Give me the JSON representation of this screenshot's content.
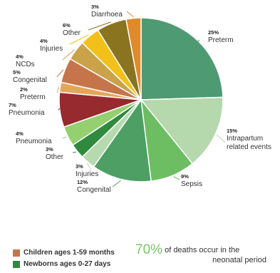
{
  "chart_data": {
    "type": "pie",
    "start": "clockwise from 12 o'clock",
    "slices": [
      {
        "label": "Preterm",
        "value": 25,
        "pct": "25%",
        "group": "Newborns ages 0-27 days",
        "color": "#4e9a72"
      },
      {
        "label": "Intrapartum related events",
        "value": 15,
        "pct": "15%",
        "group": "Newborns ages 0-27 days",
        "color": "#b5d8ad"
      },
      {
        "label": "Sepsis",
        "value": 9,
        "pct": "9%",
        "group": "Newborns ages 0-27 days",
        "color": "#6dbd62"
      },
      {
        "label": "Congenital",
        "value": 12,
        "pct": "12%",
        "group": "Newborns ages 0-27 days",
        "color": "#4d9f63"
      },
      {
        "label": "Injuries",
        "value": 3,
        "pct": "3%",
        "group": "Newborns ages 0-27 days",
        "color": "#b7d9b0"
      },
      {
        "label": "Other",
        "value": 3,
        "pct": "3%",
        "group": "Newborns ages 0-27 days",
        "color": "#2f8a3e"
      },
      {
        "label": "Pneumonia",
        "value": 4,
        "pct": "4%",
        "group": "Newborns ages 0-27 days",
        "color": "#94d06f"
      },
      {
        "label": "Pneumonia",
        "value": 7,
        "pct": "7%",
        "group": "Children ages 1-59 months",
        "color": "#962a2f"
      },
      {
        "label": "Preterm",
        "value": 2,
        "pct": "2%",
        "group": "Children ages 1-59 months",
        "color": "#e5a65a"
      },
      {
        "label": "Congenital",
        "value": 5,
        "pct": "5%",
        "group": "Children ages 1-59 months",
        "color": "#c6754a"
      },
      {
        "label": "NCDs",
        "value": 4,
        "pct": "4%",
        "group": "Children ages 1-59 months",
        "color": "#c9a24a"
      },
      {
        "label": "Injuries",
        "value": 4,
        "pct": "4%",
        "group": "Children ages 1-59 months",
        "color": "#f2c01a"
      },
      {
        "label": "Other",
        "value": 6,
        "pct": "6%",
        "group": "Children ages 1-59 months",
        "color": "#8a7420"
      },
      {
        "label": "Diarrhoea",
        "value": 3,
        "pct": "3%",
        "group": "Children ages 1-59 months",
        "color": "#e08a2a"
      }
    ]
  },
  "legend": {
    "children": {
      "label": "Children ages 1-59 months",
      "color": "#c6754a"
    },
    "newborns": {
      "label": "Newborns ages 0-27 days",
      "color": "#2f8a3e"
    }
  },
  "note": {
    "big": "70%",
    "line1": " of deaths occur in the",
    "line2": "neonatal period"
  }
}
